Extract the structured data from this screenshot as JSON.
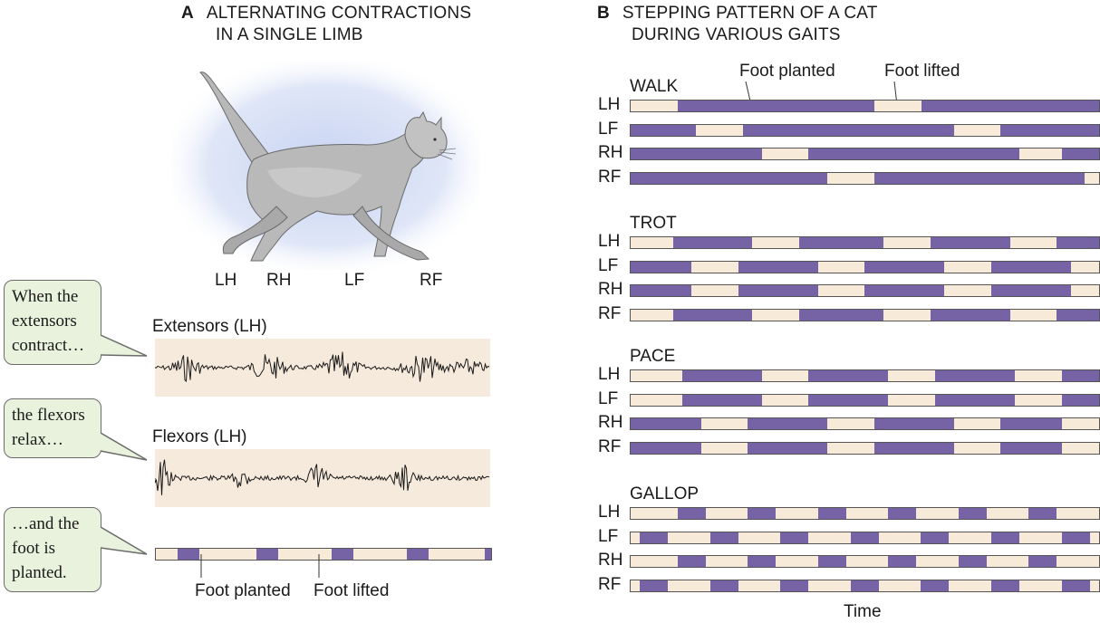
{
  "panel_a": {
    "letter": "A",
    "title_line1": "ALTERNATING CONTRACTIONS",
    "title_line2": "IN A SINGLE LIMB",
    "limbs": [
      "LH",
      "RH",
      "LF",
      "RF"
    ],
    "extensors_label": "Extensors (LH)",
    "flexors_label": "Flexors (LH)",
    "callouts": [
      {
        "lines": [
          "When the",
          "extensors",
          "contract…"
        ]
      },
      {
        "lines": [
          "the flexors",
          "relax…"
        ]
      },
      {
        "lines": [
          "…and the",
          "foot is",
          "planted."
        ]
      }
    ],
    "foot_planted_label": "Foot planted",
    "foot_lifted_label": "Foot lifted",
    "step_bar": [
      0.07,
      0.07,
      0.18,
      0.07,
      0.17,
      0.07,
      0.17,
      0.07,
      0.18,
      0.02
    ]
  },
  "panel_b": {
    "letter": "B",
    "title_line1": "STEPPING PATTERN OF A CAT",
    "title_line2": "DURING VARIOUS GAITS",
    "foot_planted_label": "Foot planted",
    "foot_lifted_label": "Foot lifted",
    "time_label": "Time",
    "colors": {
      "planted": "#7563a6",
      "lifted": "#f7ead8"
    },
    "gaits": [
      {
        "name": "WALK",
        "rows": [
          {
            "limb": "LH",
            "segments": [
              [
                "lift",
                0.1
              ],
              [
                "plant",
                0.42
              ],
              [
                "lift",
                0.1
              ],
              [
                "plant",
                0.38
              ]
            ]
          },
          {
            "limb": "LF",
            "segments": [
              [
                "plant",
                0.14
              ],
              [
                "lift",
                0.1
              ],
              [
                "plant",
                0.45
              ],
              [
                "lift",
                0.1
              ],
              [
                "plant",
                0.21
              ]
            ]
          },
          {
            "limb": "RH",
            "segments": [
              [
                "plant",
                0.28
              ],
              [
                "lift",
                0.1
              ],
              [
                "plant",
                0.45
              ],
              [
                "lift",
                0.09
              ],
              [
                "plant",
                0.08
              ]
            ]
          },
          {
            "limb": "RF",
            "segments": [
              [
                "plant",
                0.42
              ],
              [
                "lift",
                0.1
              ],
              [
                "plant",
                0.45
              ],
              [
                "lift",
                0.03
              ]
            ]
          }
        ]
      },
      {
        "name": "TROT",
        "rows": [
          {
            "limb": "LH",
            "segments": [
              [
                "lift",
                0.09
              ],
              [
                "plant",
                0.17
              ],
              [
                "lift",
                0.1
              ],
              [
                "plant",
                0.18
              ],
              [
                "lift",
                0.1
              ],
              [
                "plant",
                0.17
              ],
              [
                "lift",
                0.1
              ],
              [
                "plant",
                0.09
              ]
            ]
          },
          {
            "limb": "LF",
            "segments": [
              [
                "plant",
                0.13
              ],
              [
                "lift",
                0.1
              ],
              [
                "plant",
                0.17
              ],
              [
                "lift",
                0.1
              ],
              [
                "plant",
                0.17
              ],
              [
                "lift",
                0.1
              ],
              [
                "plant",
                0.17
              ],
              [
                "lift",
                0.06
              ]
            ]
          },
          {
            "limb": "RH",
            "segments": [
              [
                "plant",
                0.13
              ],
              [
                "lift",
                0.1
              ],
              [
                "plant",
                0.17
              ],
              [
                "lift",
                0.1
              ],
              [
                "plant",
                0.17
              ],
              [
                "lift",
                0.1
              ],
              [
                "plant",
                0.17
              ],
              [
                "lift",
                0.06
              ]
            ]
          },
          {
            "limb": "RF",
            "segments": [
              [
                "lift",
                0.09
              ],
              [
                "plant",
                0.17
              ],
              [
                "lift",
                0.1
              ],
              [
                "plant",
                0.18
              ],
              [
                "lift",
                0.1
              ],
              [
                "plant",
                0.17
              ],
              [
                "lift",
                0.1
              ],
              [
                "plant",
                0.09
              ]
            ]
          }
        ]
      },
      {
        "name": "PACE",
        "rows": [
          {
            "limb": "LH",
            "segments": [
              [
                "lift",
                0.11
              ],
              [
                "plant",
                0.17
              ],
              [
                "lift",
                0.1
              ],
              [
                "plant",
                0.17
              ],
              [
                "lift",
                0.1
              ],
              [
                "plant",
                0.17
              ],
              [
                "lift",
                0.1
              ],
              [
                "plant",
                0.08
              ]
            ]
          },
          {
            "limb": "LF",
            "segments": [
              [
                "lift",
                0.11
              ],
              [
                "plant",
                0.17
              ],
              [
                "lift",
                0.1
              ],
              [
                "plant",
                0.17
              ],
              [
                "lift",
                0.1
              ],
              [
                "plant",
                0.17
              ],
              [
                "lift",
                0.1
              ],
              [
                "plant",
                0.08
              ]
            ]
          },
          {
            "limb": "RH",
            "segments": [
              [
                "plant",
                0.15
              ],
              [
                "lift",
                0.1
              ],
              [
                "plant",
                0.17
              ],
              [
                "lift",
                0.1
              ],
              [
                "plant",
                0.17
              ],
              [
                "lift",
                0.1
              ],
              [
                "plant",
                0.13
              ],
              [
                "lift",
                0.08
              ]
            ]
          },
          {
            "limb": "RF",
            "segments": [
              [
                "plant",
                0.15
              ],
              [
                "lift",
                0.1
              ],
              [
                "plant",
                0.17
              ],
              [
                "lift",
                0.1
              ],
              [
                "plant",
                0.17
              ],
              [
                "lift",
                0.1
              ],
              [
                "plant",
                0.13
              ],
              [
                "lift",
                0.08
              ]
            ]
          }
        ]
      },
      {
        "name": "GALLOP",
        "rows": [
          {
            "limb": "LH",
            "segments": [
              [
                "lift",
                0.1
              ],
              [
                "plant",
                0.06
              ],
              [
                "lift",
                0.09
              ],
              [
                "plant",
                0.06
              ],
              [
                "lift",
                0.09
              ],
              [
                "plant",
                0.06
              ],
              [
                "lift",
                0.09
              ],
              [
                "plant",
                0.06
              ],
              [
                "lift",
                0.09
              ],
              [
                "plant",
                0.06
              ],
              [
                "lift",
                0.09
              ],
              [
                "plant",
                0.06
              ],
              [
                "lift",
                0.09
              ]
            ]
          },
          {
            "limb": "LF",
            "segments": [
              [
                "lift",
                0.02
              ],
              [
                "plant",
                0.06
              ],
              [
                "lift",
                0.09
              ],
              [
                "plant",
                0.06
              ],
              [
                "lift",
                0.09
              ],
              [
                "plant",
                0.06
              ],
              [
                "lift",
                0.09
              ],
              [
                "plant",
                0.06
              ],
              [
                "lift",
                0.09
              ],
              [
                "plant",
                0.06
              ],
              [
                "lift",
                0.09
              ],
              [
                "plant",
                0.06
              ],
              [
                "lift",
                0.09
              ],
              [
                "plant",
                0.06
              ],
              [
                "lift",
                0.02
              ]
            ]
          },
          {
            "limb": "RH",
            "segments": [
              [
                "lift",
                0.1
              ],
              [
                "plant",
                0.06
              ],
              [
                "lift",
                0.09
              ],
              [
                "plant",
                0.06
              ],
              [
                "lift",
                0.09
              ],
              [
                "plant",
                0.06
              ],
              [
                "lift",
                0.09
              ],
              [
                "plant",
                0.06
              ],
              [
                "lift",
                0.09
              ],
              [
                "plant",
                0.06
              ],
              [
                "lift",
                0.09
              ],
              [
                "plant",
                0.06
              ],
              [
                "lift",
                0.09
              ]
            ]
          },
          {
            "limb": "RF",
            "segments": [
              [
                "lift",
                0.02
              ],
              [
                "plant",
                0.06
              ],
              [
                "lift",
                0.09
              ],
              [
                "plant",
                0.06
              ],
              [
                "lift",
                0.09
              ],
              [
                "plant",
                0.06
              ],
              [
                "lift",
                0.09
              ],
              [
                "plant",
                0.06
              ],
              [
                "lift",
                0.09
              ],
              [
                "plant",
                0.06
              ],
              [
                "lift",
                0.09
              ],
              [
                "plant",
                0.06
              ],
              [
                "lift",
                0.09
              ],
              [
                "plant",
                0.06
              ],
              [
                "lift",
                0.02
              ]
            ]
          }
        ]
      }
    ]
  }
}
